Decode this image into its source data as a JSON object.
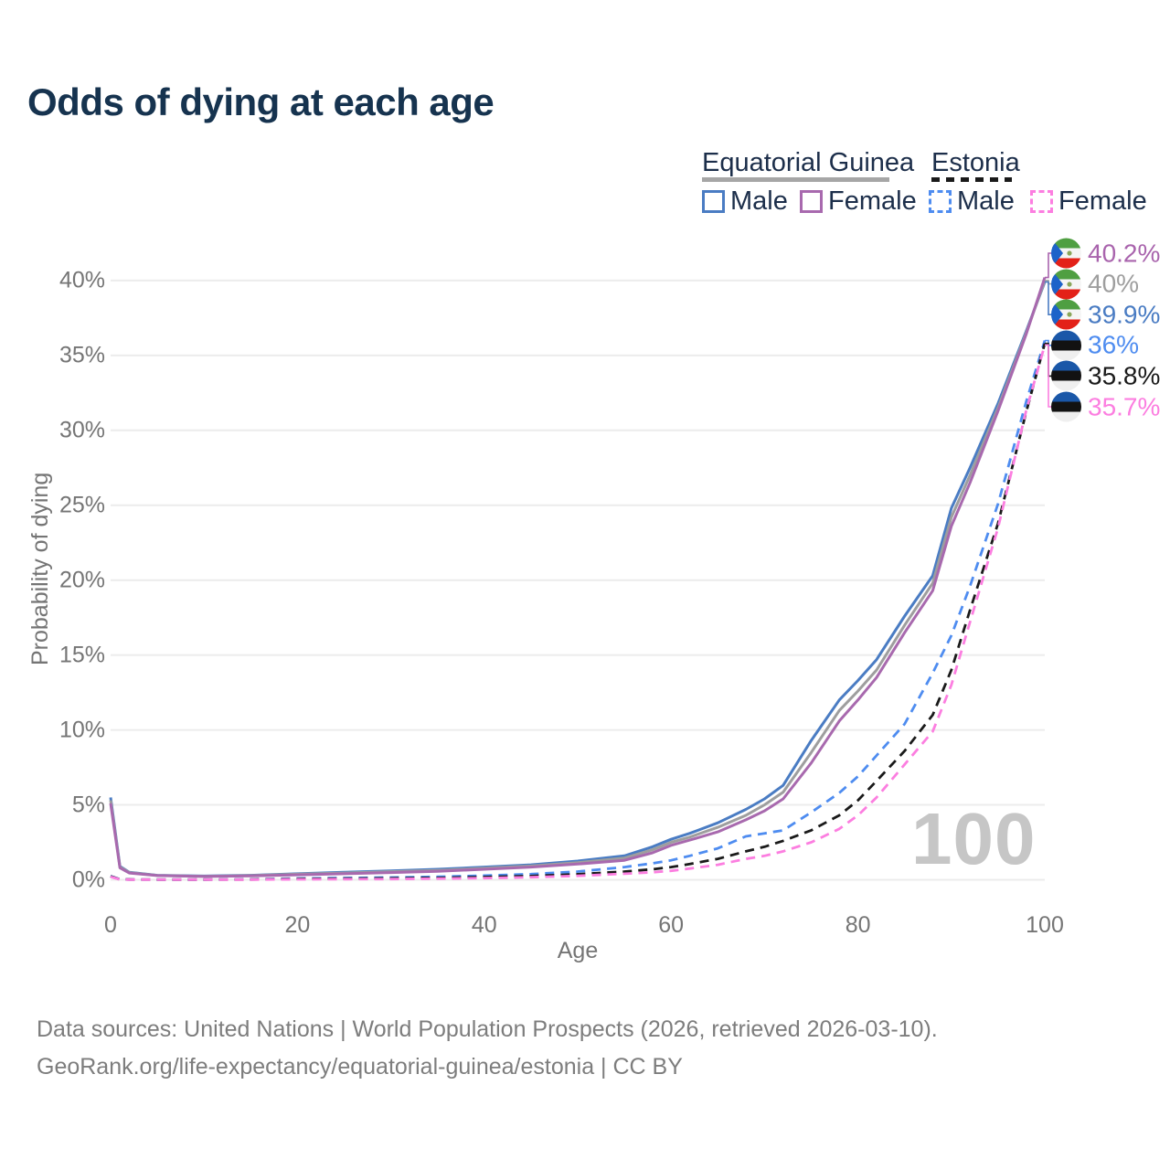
{
  "title": "Odds of dying at each age",
  "watermark": "100",
  "legend": {
    "groups": [
      {
        "country": "Equatorial Guinea",
        "line_style": "solid",
        "underline_color": "#a6a6a6",
        "items": [
          {
            "label": "Male",
            "color": "#4a7cc3",
            "dashed": false
          },
          {
            "label": "Female",
            "color": "#a869ae",
            "dashed": false
          }
        ]
      },
      {
        "country": "Estonia",
        "line_style": "dashed",
        "underline_color": "#1a1a1a",
        "items": [
          {
            "label": "Male",
            "color": "#4e8cf0",
            "dashed": true
          },
          {
            "label": "Female",
            "color": "#fc7ee0",
            "dashed": true
          }
        ]
      }
    ]
  },
  "chart_data": {
    "type": "line",
    "title": "Odds of dying at each age",
    "xlabel": "Age",
    "ylabel": "Probability of dying",
    "xlim": [
      0,
      100
    ],
    "ylim": [
      0,
      42
    ],
    "grid": "horizontal",
    "y_ticks": [
      "0%",
      "5%",
      "10%",
      "15%",
      "20%",
      "25%",
      "30%",
      "35%",
      "40%"
    ],
    "x_ticks": [
      "0",
      "20",
      "40",
      "60",
      "80",
      "100"
    ],
    "x": [
      0,
      1,
      2,
      5,
      10,
      15,
      20,
      25,
      30,
      35,
      40,
      45,
      50,
      55,
      58,
      60,
      62,
      65,
      68,
      70,
      72,
      75,
      78,
      80,
      82,
      85,
      88,
      90,
      92,
      95,
      98,
      100
    ],
    "series": [
      {
        "name": "Equatorial Guinea Male",
        "color": "#4a7cc3",
        "dashed": false,
        "values": [
          5.5,
          0.9,
          0.5,
          0.3,
          0.25,
          0.3,
          0.4,
          0.5,
          0.6,
          0.7,
          0.85,
          1.0,
          1.25,
          1.6,
          2.2,
          2.7,
          3.1,
          3.8,
          4.7,
          5.4,
          6.3,
          9.3,
          12.0,
          13.3,
          14.7,
          17.6,
          20.3,
          24.8,
          27.5,
          31.8,
          36.6,
          39.9
        ]
      },
      {
        "name": "Equatorial Guinea Both",
        "color": "#9e9e9e",
        "dashed": false,
        "values": [
          5.3,
          0.85,
          0.48,
          0.29,
          0.23,
          0.28,
          0.37,
          0.45,
          0.54,
          0.63,
          0.77,
          0.92,
          1.15,
          1.45,
          2.0,
          2.5,
          2.85,
          3.5,
          4.3,
          5.0,
          5.85,
          8.5,
          11.3,
          12.6,
          14.0,
          17.0,
          19.8,
          24.2,
          27.0,
          31.5,
          36.5,
          40.0
        ]
      },
      {
        "name": "Equatorial Guinea Female",
        "color": "#a869ae",
        "dashed": false,
        "values": [
          5.1,
          0.8,
          0.45,
          0.28,
          0.22,
          0.26,
          0.33,
          0.4,
          0.48,
          0.57,
          0.7,
          0.85,
          1.05,
          1.3,
          1.8,
          2.3,
          2.65,
          3.2,
          4.0,
          4.6,
          5.4,
          7.8,
          10.6,
          12.0,
          13.5,
          16.5,
          19.3,
          23.6,
          26.5,
          31.3,
          36.4,
          40.2
        ]
      },
      {
        "name": "Estonia Male",
        "color": "#4e8cf0",
        "dashed": true,
        "values": [
          0.25,
          0.03,
          0.02,
          0.015,
          0.015,
          0.03,
          0.09,
          0.12,
          0.15,
          0.2,
          0.28,
          0.38,
          0.55,
          0.85,
          1.1,
          1.3,
          1.6,
          2.1,
          2.9,
          3.1,
          3.3,
          4.5,
          5.8,
          6.9,
          8.3,
          10.4,
          13.8,
          16.3,
          19.6,
          25.1,
          31.9,
          36.0
        ]
      },
      {
        "name": "Estonia Both",
        "color": "#1a1a1a",
        "dashed": true,
        "values": [
          0.23,
          0.025,
          0.018,
          0.012,
          0.012,
          0.02,
          0.06,
          0.08,
          0.1,
          0.13,
          0.18,
          0.25,
          0.37,
          0.55,
          0.7,
          0.85,
          1.05,
          1.4,
          1.9,
          2.2,
          2.6,
          3.3,
          4.3,
          5.3,
          6.6,
          8.6,
          11.0,
          14.0,
          18.0,
          23.8,
          31.2,
          35.8
        ]
      },
      {
        "name": "Estonia Female",
        "color": "#fc7ee0",
        "dashed": true,
        "values": [
          0.2,
          0.02,
          0.012,
          0.01,
          0.01,
          0.015,
          0.03,
          0.04,
          0.05,
          0.08,
          0.11,
          0.17,
          0.26,
          0.4,
          0.5,
          0.6,
          0.75,
          1.0,
          1.4,
          1.6,
          1.9,
          2.5,
          3.4,
          4.3,
          5.5,
          7.7,
          9.9,
          13.0,
          17.2,
          23.5,
          31.3,
          35.7
        ]
      }
    ],
    "end_labels": [
      {
        "value": "40.2%",
        "pct": 40.2,
        "color": "#a964ad",
        "flag": "equatorial-guinea"
      },
      {
        "value": "40%",
        "pct": 40.0,
        "color": "#9e9e9e",
        "flag": "equatorial-guinea"
      },
      {
        "value": "39.9%",
        "pct": 39.9,
        "color": "#4a7cc3",
        "flag": "equatorial-guinea"
      },
      {
        "value": "36%",
        "pct": 36.0,
        "color": "#4e8cf0",
        "flag": "estonia"
      },
      {
        "value": "35.8%",
        "pct": 35.8,
        "color": "#1a1a1a",
        "flag": "estonia"
      },
      {
        "value": "35.7%",
        "pct": 35.7,
        "color": "#fc7ee0",
        "flag": "estonia"
      }
    ],
    "annotation": "100"
  },
  "flag_colors": {
    "equatorial-guinea": {
      "green": "#4f9f42",
      "white": "#f5f5f5",
      "red": "#e32118",
      "blue": "#1d63c9",
      "emblem": "#8aa65a"
    },
    "estonia": {
      "blue": "#1a57a8",
      "black": "#121212",
      "white": "#efefef"
    }
  },
  "colors": {
    "grid": "#ececec",
    "axis_text": "#757575",
    "title": "#16334f",
    "legend_text": "#1c2e4a",
    "watermark": "#c6c6c6",
    "footer_text": "#7d7d7d"
  },
  "footer": {
    "line1": "Data sources: United Nations | World Population Prospects (2026, retrieved 2026-03-10).",
    "line2": "GeoRank.org/life-expectancy/equatorial-guinea/estonia | CC BY"
  }
}
